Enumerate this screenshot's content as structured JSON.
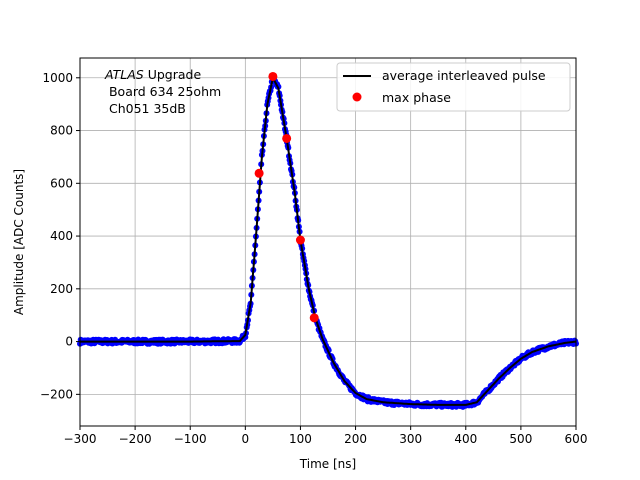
{
  "chart_data": {
    "type": "line",
    "xlabel": "Time [ns]",
    "ylabel": "Amplitude [ADC Counts]",
    "xlim": [
      -300,
      600
    ],
    "ylim": [
      -320,
      1075
    ],
    "xticks": [
      -300,
      -200,
      -100,
      0,
      100,
      200,
      300,
      400,
      500,
      600
    ],
    "yticks": [
      -200,
      0,
      200,
      400,
      600,
      800,
      1000
    ],
    "grid": true,
    "legend_position": "top-right",
    "annotation": {
      "italic_part": "ATLAS",
      "rest_line1": " Upgrade",
      "line2": " Board 634 25ohm",
      "line3": " Ch051 35dB"
    },
    "series": [
      {
        "name": "average interleaved pulse",
        "kind": "line",
        "color": "#000000",
        "x": [
          -300,
          -200,
          -100,
          -10,
          0,
          10,
          20,
          30,
          40,
          50,
          60,
          75,
          90,
          100,
          115,
          127,
          140,
          160,
          180,
          200,
          220,
          250,
          300,
          350,
          400,
          420,
          440,
          460,
          480,
          500,
          520,
          550,
          580,
          600
        ],
        "y": [
          0,
          0,
          0,
          2,
          25,
          150,
          420,
          700,
          900,
          1000,
          960,
          770,
          560,
          385,
          200,
          90,
          10,
          -80,
          -150,
          -195,
          -218,
          -230,
          -237,
          -240,
          -240,
          -230,
          -185,
          -140,
          -100,
          -65,
          -40,
          -18,
          -5,
          0
        ]
      },
      {
        "name": "max phase",
        "kind": "scatter",
        "color": "#ff0000",
        "x": [
          25,
          50,
          75,
          100,
          125
        ],
        "y": [
          638,
          1005,
          770,
          385,
          90
        ]
      }
    ],
    "samples_color": "#0000ff"
  }
}
